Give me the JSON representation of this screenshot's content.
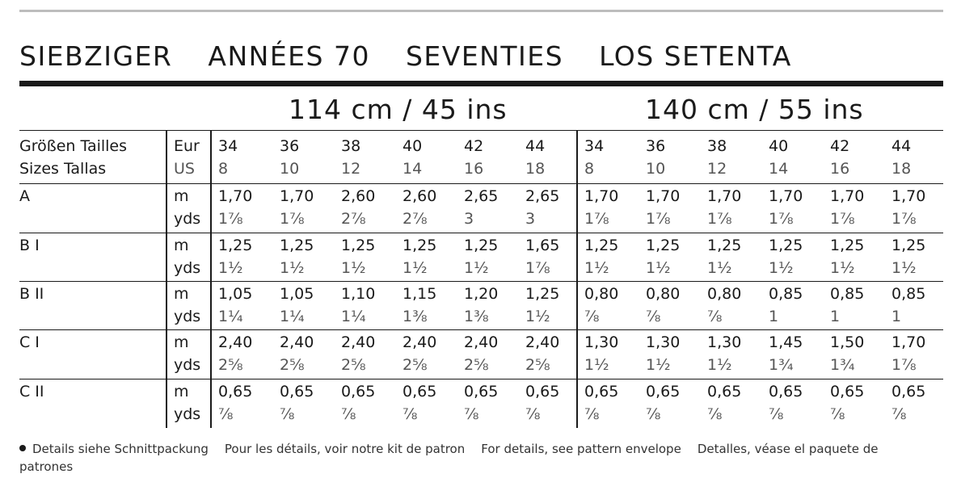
{
  "title": [
    "SIEBZIGER",
    "ANNÉES 70",
    "SEVENTIES",
    "LOS SETENTA"
  ],
  "widths": [
    "114 cm / 45 ins",
    "140 cm / 55 ins"
  ],
  "size_header": {
    "label_line1": "Größen Tailles",
    "label_line2": "Sizes Tallas",
    "unit_line1": "Eur",
    "unit_line2": "US",
    "eur": [
      "34",
      "36",
      "38",
      "40",
      "42",
      "44",
      "34",
      "36",
      "38",
      "40",
      "42",
      "44"
    ],
    "us": [
      "8",
      "10",
      "12",
      "14",
      "16",
      "18",
      "8",
      "10",
      "12",
      "14",
      "16",
      "18"
    ]
  },
  "rows": [
    {
      "label": "A",
      "unit_m": "m",
      "unit_yds": "yds",
      "m": [
        "1,70",
        "1,70",
        "2,60",
        "2,60",
        "2,65",
        "2,65",
        "1,70",
        "1,70",
        "1,70",
        "1,70",
        "1,70",
        "1,70"
      ],
      "yds": [
        "1⅞",
        "1⅞",
        "2⅞",
        "2⅞",
        "3",
        "3",
        "1⅞",
        "1⅞",
        "1⅞",
        "1⅞",
        "1⅞",
        "1⅞"
      ]
    },
    {
      "label": "B I",
      "unit_m": "m",
      "unit_yds": "yds",
      "m": [
        "1,25",
        "1,25",
        "1,25",
        "1,25",
        "1,25",
        "1,65",
        "1,25",
        "1,25",
        "1,25",
        "1,25",
        "1,25",
        "1,25"
      ],
      "yds": [
        "1½",
        "1½",
        "1½",
        "1½",
        "1½",
        "1⅞",
        "1½",
        "1½",
        "1½",
        "1½",
        "1½",
        "1½"
      ]
    },
    {
      "label": "B II",
      "unit_m": "m",
      "unit_yds": "yds",
      "m": [
        "1,05",
        "1,05",
        "1,10",
        "1,15",
        "1,20",
        "1,25",
        "0,80",
        "0,80",
        "0,80",
        "0,85",
        "0,85",
        "0,85"
      ],
      "yds": [
        "1¼",
        "1¼",
        "1¼",
        "1⅜",
        "1⅜",
        "1½",
        "⅞",
        "⅞",
        "⅞",
        "1",
        "1",
        "1"
      ]
    },
    {
      "label": "C I",
      "unit_m": "m",
      "unit_yds": "yds",
      "m": [
        "2,40",
        "2,40",
        "2,40",
        "2,40",
        "2,40",
        "2,40",
        "1,30",
        "1,30",
        "1,30",
        "1,45",
        "1,50",
        "1,70"
      ],
      "yds": [
        "2⅝",
        "2⅝",
        "2⅝",
        "2⅝",
        "2⅝",
        "2⅝",
        "1½",
        "1½",
        "1½",
        "1¾",
        "1¾",
        "1⅞"
      ]
    },
    {
      "label": "C II",
      "unit_m": "m",
      "unit_yds": "yds",
      "m": [
        "0,65",
        "0,65",
        "0,65",
        "0,65",
        "0,65",
        "0,65",
        "0,65",
        "0,65",
        "0,65",
        "0,65",
        "0,65",
        "0,65"
      ],
      "yds": [
        "⅞",
        "⅞",
        "⅞",
        "⅞",
        "⅞",
        "⅞",
        "⅞",
        "⅞",
        "⅞",
        "⅞",
        "⅞",
        "⅞"
      ]
    }
  ],
  "footer": {
    "de": "Details siehe Schnittpackung",
    "fr": "Pour les détails, voir notre kit de patron",
    "en": "For details, see pattern envelope",
    "es": "Detalles, véase el paquete de patrones"
  }
}
